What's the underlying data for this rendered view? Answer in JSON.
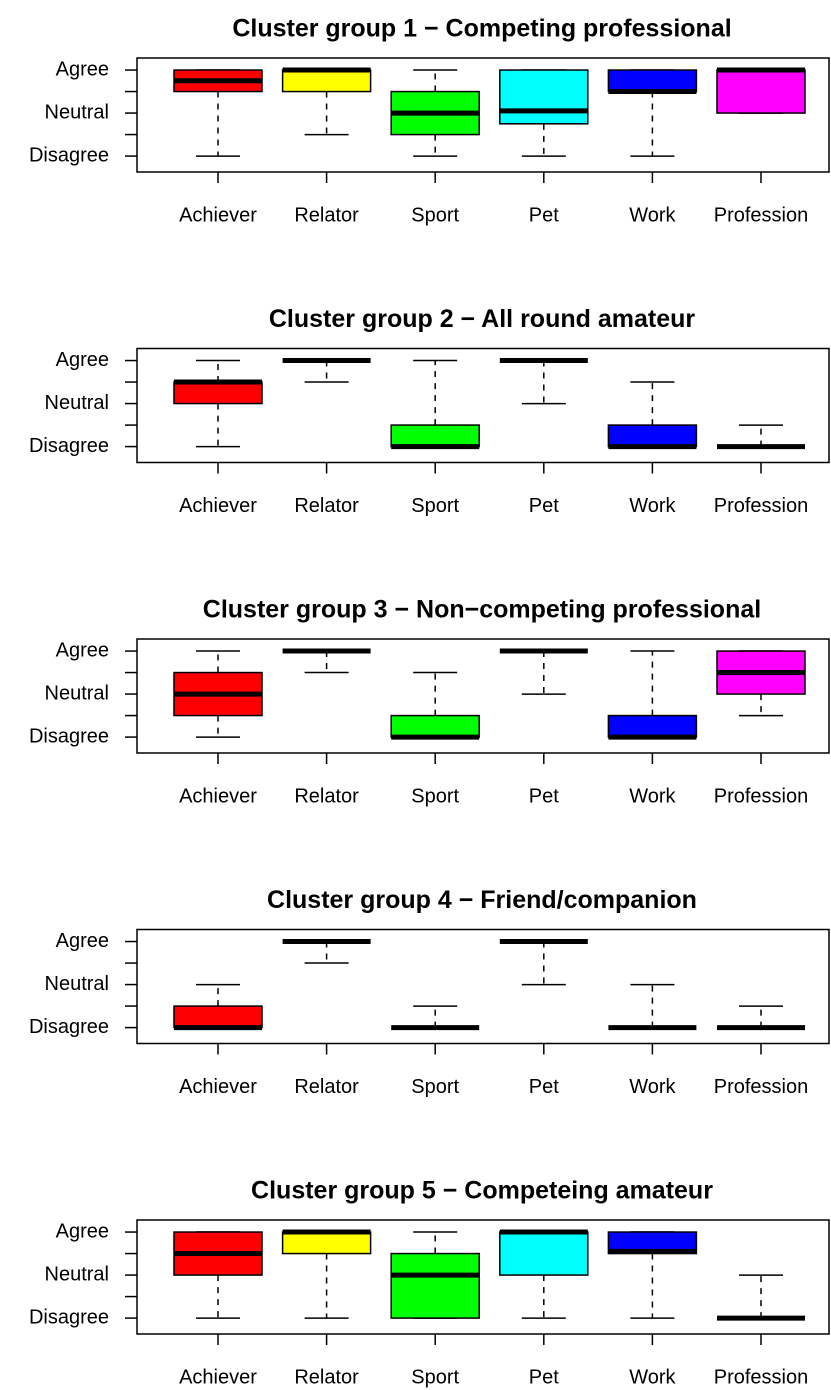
{
  "chart_data": [
    {
      "type": "box",
      "title": "Cluster group 1 − Competing professional",
      "categories": [
        "Achiever",
        "Relator",
        "Sport",
        "Pet",
        "Work",
        "Profession"
      ],
      "colors": [
        "#ff0000",
        "#ffff00",
        "#00ff00",
        "#00ffff",
        "#0000ff",
        "#ff00ff"
      ],
      "boxes": [
        {
          "low": 1,
          "q1": 2.5,
          "median": 2.75,
          "q3": 3,
          "high": 3
        },
        {
          "low": 1.5,
          "q1": 2.5,
          "median": 3,
          "q3": 3,
          "high": 3
        },
        {
          "low": 1,
          "q1": 1.5,
          "median": 2,
          "q3": 2.5,
          "high": 3
        },
        {
          "low": 1,
          "q1": 1.75,
          "median": 2.05,
          "q3": 3,
          "high": 3
        },
        {
          "low": 1,
          "q1": 2.5,
          "median": 2.5,
          "q3": 3,
          "high": 3
        },
        {
          "low": 2,
          "q1": 2,
          "median": 3,
          "q3": 3,
          "high": 3
        }
      ],
      "ylim": [
        0.63,
        3.28
      ],
      "yticks": [
        {
          "value": 1,
          "label": "Disagree"
        },
        {
          "value": 2,
          "label": "Neutral"
        },
        {
          "value": 3,
          "label": "Agree"
        }
      ],
      "minor_yticks": [
        1.5,
        2.5
      ]
    },
    {
      "type": "box",
      "title": "Cluster group 2 − All round amateur",
      "categories": [
        "Achiever",
        "Relator",
        "Sport",
        "Pet",
        "Work",
        "Profession"
      ],
      "colors": [
        "#ff0000",
        "#ffff00",
        "#00ff00",
        "#00ffff",
        "#0000ff",
        "#ff00ff"
      ],
      "boxes": [
        {
          "low": 1,
          "q1": 2,
          "median": 2.5,
          "q3": 2.5,
          "high": 3
        },
        {
          "low": 2.5,
          "q1": 3,
          "median": 3,
          "q3": 3,
          "high": 3
        },
        {
          "low": 1,
          "q1": 1,
          "median": 1,
          "q3": 1.5,
          "high": 3
        },
        {
          "low": 2,
          "q1": 3,
          "median": 3,
          "q3": 3,
          "high": 3
        },
        {
          "low": 1,
          "q1": 1,
          "median": 1,
          "q3": 1.5,
          "high": 2.5
        },
        {
          "low": 1,
          "q1": 1,
          "median": 1,
          "q3": 1,
          "high": 1.5
        }
      ],
      "ylim": [
        0.63,
        3.28
      ],
      "yticks": [
        {
          "value": 1,
          "label": "Disagree"
        },
        {
          "value": 2,
          "label": "Neutral"
        },
        {
          "value": 3,
          "label": "Agree"
        }
      ],
      "minor_yticks": [
        1.5,
        2.5
      ]
    },
    {
      "type": "box",
      "title": "Cluster group 3 − Non−competing professional",
      "categories": [
        "Achiever",
        "Relator",
        "Sport",
        "Pet",
        "Work",
        "Profession"
      ],
      "colors": [
        "#ff0000",
        "#ffff00",
        "#00ff00",
        "#00ffff",
        "#0000ff",
        "#ff00ff"
      ],
      "boxes": [
        {
          "low": 1,
          "q1": 1.5,
          "median": 2,
          "q3": 2.5,
          "high": 3
        },
        {
          "low": 2.5,
          "q1": 3,
          "median": 3,
          "q3": 3,
          "high": 3
        },
        {
          "low": 1,
          "q1": 1,
          "median": 1,
          "q3": 1.5,
          "high": 2.5
        },
        {
          "low": 2,
          "q1": 3,
          "median": 3,
          "q3": 3,
          "high": 3
        },
        {
          "low": 1,
          "q1": 1,
          "median": 1,
          "q3": 1.5,
          "high": 3
        },
        {
          "low": 1.5,
          "q1": 2,
          "median": 2.5,
          "q3": 3,
          "high": 3
        }
      ],
      "ylim": [
        0.63,
        3.28
      ],
      "yticks": [
        {
          "value": 1,
          "label": "Disagree"
        },
        {
          "value": 2,
          "label": "Neutral"
        },
        {
          "value": 3,
          "label": "Agree"
        }
      ],
      "minor_yticks": [
        1.5,
        2.5
      ]
    },
    {
      "type": "box",
      "title": "Cluster group 4 − Friend/companion",
      "categories": [
        "Achiever",
        "Relator",
        "Sport",
        "Pet",
        "Work",
        "Profession"
      ],
      "colors": [
        "#ff0000",
        "#ffff00",
        "#00ff00",
        "#00ffff",
        "#0000ff",
        "#ff00ff"
      ],
      "boxes": [
        {
          "low": 1,
          "q1": 1,
          "median": 1,
          "q3": 1.5,
          "high": 2
        },
        {
          "low": 2.5,
          "q1": 3,
          "median": 3,
          "q3": 3,
          "high": 3
        },
        {
          "low": 1,
          "q1": 1,
          "median": 1,
          "q3": 1,
          "high": 1.5
        },
        {
          "low": 2,
          "q1": 3,
          "median": 3,
          "q3": 3,
          "high": 3
        },
        {
          "low": 1,
          "q1": 1,
          "median": 1,
          "q3": 1,
          "high": 2
        },
        {
          "low": 1,
          "q1": 1,
          "median": 1,
          "q3": 1,
          "high": 1.5
        }
      ],
      "ylim": [
        0.63,
        3.28
      ],
      "yticks": [
        {
          "value": 1,
          "label": "Disagree"
        },
        {
          "value": 2,
          "label": "Neutral"
        },
        {
          "value": 3,
          "label": "Agree"
        }
      ],
      "minor_yticks": [
        1.5,
        2.5
      ]
    },
    {
      "type": "box",
      "title": "Cluster group 5 − Competeing amateur",
      "categories": [
        "Achiever",
        "Relator",
        "Sport",
        "Pet",
        "Work",
        "Profession"
      ],
      "colors": [
        "#ff0000",
        "#ffff00",
        "#00ff00",
        "#00ffff",
        "#0000ff",
        "#ff00ff"
      ],
      "boxes": [
        {
          "low": 1,
          "q1": 2,
          "median": 2.5,
          "q3": 3,
          "high": 3
        },
        {
          "low": 1,
          "q1": 2.5,
          "median": 3,
          "q3": 3,
          "high": 3
        },
        {
          "low": 1,
          "q1": 1,
          "median": 2,
          "q3": 2.5,
          "high": 3
        },
        {
          "low": 1,
          "q1": 2,
          "median": 3,
          "q3": 3,
          "high": 3
        },
        {
          "low": 1,
          "q1": 2.5,
          "median": 2.55,
          "q3": 3,
          "high": 3
        },
        {
          "low": 1,
          "q1": 1,
          "median": 1,
          "q3": 1,
          "high": 2
        }
      ],
      "ylim": [
        0.63,
        3.28
      ],
      "yticks": [
        {
          "value": 1,
          "label": "Disagree"
        },
        {
          "value": 2,
          "label": "Neutral"
        },
        {
          "value": 3,
          "label": "Agree"
        }
      ],
      "minor_yticks": [
        1.5,
        2.5
      ]
    }
  ]
}
